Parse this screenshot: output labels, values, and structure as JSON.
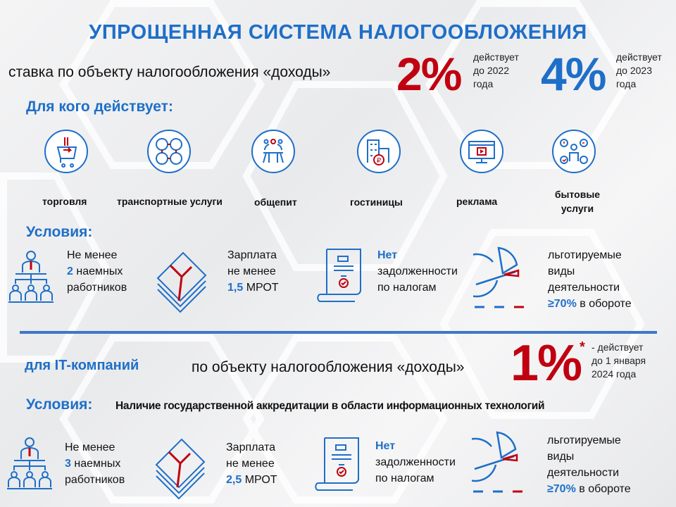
{
  "title": "УПРОЩЕННАЯ  СИСТЕМА НАЛОГООБЛОЖЕНИЯ",
  "rate_text": "ставка по объекту налогообложения  «доходы»",
  "rate1": {
    "value": "2%",
    "line1": "действует",
    "line2": "до 2022",
    "line3": "года",
    "color": "#c00010"
  },
  "rate2": {
    "value": "4%",
    "line1": "действует",
    "line2": "до 2023",
    "line3": "года",
    "color": "#1e6fc8"
  },
  "for_whom_heading": "Для кого действует:",
  "sectors": [
    {
      "label": "торговля",
      "icon": "shopping-cart-icon"
    },
    {
      "label": "транспортные услуги",
      "icon": "transport-icon"
    },
    {
      "label": "общепит",
      "icon": "dining-icon"
    },
    {
      "label": "гостиницы",
      "icon": "hotel-icon"
    },
    {
      "label": "реклама",
      "icon": "advertising-icon"
    },
    {
      "label": "бытовые",
      "label2": "услуги",
      "icon": "household-services-icon"
    }
  ],
  "conditions_heading": "Условия:",
  "conditions1": {
    "employees": {
      "l1": "Не менее",
      "num": "2",
      "l2": " наемных",
      "l3": "работников"
    },
    "salary": {
      "l1": "Зарплата",
      "l2": "не менее",
      "num": "1,5",
      "l3": " МРОТ"
    },
    "debt": {
      "l1": "Нет",
      "l2": "задолженности",
      "l3": "по налогам"
    },
    "share": {
      "l1": "льготируемые",
      "l2": "виды",
      "l3": "деятельности",
      "num": "≥70%",
      "l4": " в обороте"
    }
  },
  "it": {
    "heading": "для IT-компаний",
    "text": "по объекту налогообложения  «доходы»",
    "value": "1%",
    "asterisk": "*",
    "line1": "- действует",
    "line2": "до 1 января",
    "line3": "2024 года"
  },
  "conditions2_heading": "Условия:",
  "accreditation": "Наличие государственной аккредитации в области информационных технологий",
  "conditions2": {
    "employees": {
      "l1": "Не менее",
      "num": "3",
      "l2": " наемных",
      "l3": "работников"
    },
    "salary": {
      "l1": "Зарплата",
      "l2": "не менее",
      "num": "2,5",
      "l3": " МРОТ"
    },
    "debt": {
      "l1": "Нет",
      "l2": "задолженности",
      "l3": "по налогам"
    },
    "share": {
      "l1": "льготируемые",
      "l2": "виды",
      "l3": "деятельности",
      "num": "≥70%",
      "l4": " в обороте"
    }
  }
}
